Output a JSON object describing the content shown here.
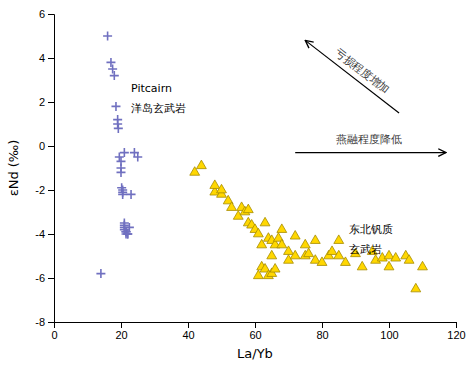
{
  "chart_data": {
    "type": "scatter",
    "xlabel": "La/Yb",
    "ylabel": "εNd (‰)",
    "xlim": [
      0,
      120
    ],
    "ylim": [
      -8,
      6
    ],
    "xticks": [
      0,
      20,
      40,
      60,
      80,
      100,
      120
    ],
    "yticks": [
      -8,
      -6,
      -4,
      -2,
      0,
      2,
      4,
      6
    ],
    "grid": false,
    "series": [
      {
        "color": "#7070C0",
        "marker": "plus",
        "x": [
          16,
          17,
          17.5,
          18,
          18.5,
          19,
          19,
          19.2,
          19.5,
          20,
          20,
          20,
          20.2,
          20.5,
          20.5,
          20.5,
          21,
          21,
          21,
          21,
          21.5,
          21.5,
          21.5,
          22,
          22,
          22.5,
          23,
          24,
          25,
          21,
          14
        ],
        "values": [
          5.0,
          3.8,
          3.5,
          3.2,
          1.8,
          1.2,
          1.0,
          0.8,
          -0.5,
          -0.7,
          -1.0,
          -1.2,
          -1.9,
          -2.0,
          -2.1,
          -2.2,
          -3.5,
          -3.6,
          -3.7,
          -3.8,
          -3.9,
          -3.9,
          -4.0,
          -4.0,
          -4.0,
          -3.7,
          -2.2,
          -0.3,
          -0.5,
          -0.3,
          -5.8
        ]
      },
      {
        "color": "#FFD700",
        "marker": "triangle",
        "x": [
          42,
          44,
          48,
          48,
          50,
          50,
          52,
          53,
          55,
          56,
          57,
          58,
          58,
          59,
          60,
          61,
          61,
          62,
          62,
          63,
          63,
          64,
          64,
          65,
          65,
          65,
          66,
          66,
          67,
          68,
          68,
          70,
          70,
          72,
          72,
          75,
          75,
          76,
          78,
          78,
          80,
          82,
          83,
          85,
          85,
          87,
          90,
          92,
          95,
          96,
          98,
          100,
          100,
          102,
          105,
          106,
          108,
          110
        ],
        "values": [
          -1.2,
          -0.9,
          -2.1,
          -1.8,
          -2.2,
          -2.0,
          -2.5,
          -2.8,
          -3.2,
          -2.8,
          -3.0,
          -2.9,
          -3.5,
          -3.6,
          -3.8,
          -4.0,
          -5.9,
          -4.5,
          -5.5,
          -5.6,
          -3.5,
          -4.2,
          -5.9,
          -5.0,
          -4.3,
          -5.8,
          -4.5,
          -5.6,
          -4.2,
          -3.8,
          -4.5,
          -4.8,
          -5.2,
          -4.1,
          -5.0,
          -4.5,
          -5.0,
          -4.9,
          -5.2,
          -4.3,
          -5.3,
          -5.0,
          -4.8,
          -5.0,
          -4.3,
          -5.3,
          -4.9,
          -5.5,
          -4.8,
          -5.2,
          -5.1,
          -5.0,
          -5.5,
          -5.1,
          -5.0,
          -5.2,
          -6.5,
          -5.5
        ]
      }
    ],
    "annotations": [
      {
        "text": "Pitcairn",
        "x": 23,
        "y": 2.8
      },
      {
        "text": "洋岛玄武岩",
        "x": 23,
        "y": 1.9
      },
      {
        "text": "东北钒质",
        "x": 88,
        "y": -3.6
      },
      {
        "text": "玄武岩",
        "x": 88,
        "y": -4.5
      },
      {
        "text": "亏损程度增加",
        "x": 92,
        "y": 3.4,
        "arrow": {
          "from": [
            103,
            1.5
          ],
          "to": [
            75,
            4.8
          ]
        }
      },
      {
        "text": "燕融程度降低",
        "x": 94,
        "y": 0.05,
        "arrow": {
          "from": [
            72,
            -0.3
          ],
          "to": [
            117,
            -0.3
          ]
        }
      }
    ]
  }
}
